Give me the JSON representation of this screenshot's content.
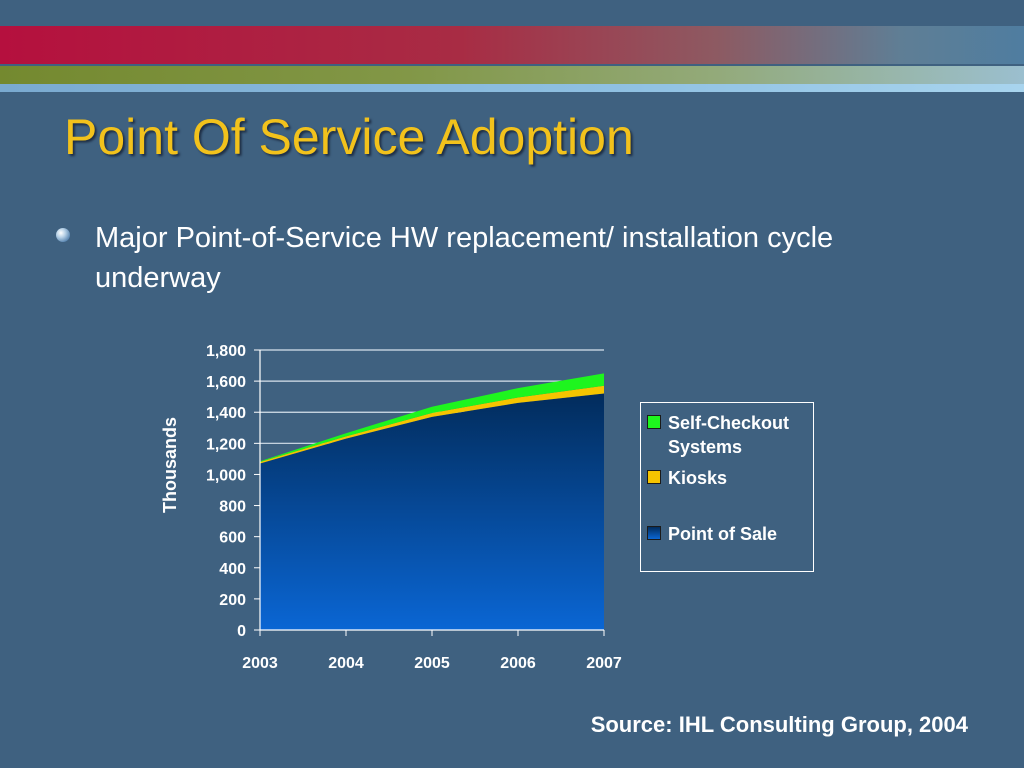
{
  "slide": {
    "title": "Point Of Service Adoption",
    "bullet": "Major Point-of-Service HW replacement/ installation cycle underway",
    "source": "Source:  IHL Consulting Group, 2004"
  },
  "colors": {
    "title": "#f2c21c",
    "background": "#3f6180",
    "self_checkout": "#1ef51e",
    "kiosks": "#f5c400",
    "pos_top": "#022c5c",
    "pos_bottom": "#0a66d4"
  },
  "chart_data": {
    "type": "area",
    "stacked": true,
    "x": [
      "2003",
      "2004",
      "2005",
      "2006",
      "2007"
    ],
    "ylabel": "Thousands",
    "xlabel": "",
    "ylim": [
      0,
      1800
    ],
    "yticks": [
      0,
      200,
      400,
      600,
      800,
      1000,
      1200,
      1400,
      1600,
      1800
    ],
    "ytick_labels": [
      "0",
      "200",
      "400",
      "600",
      "800",
      "1,000",
      "1,200",
      "1,400",
      "1,600",
      "1,800"
    ],
    "grid": true,
    "legend_position": "right",
    "series": [
      {
        "name": "Point of Sale",
        "values": [
          1070,
          1230,
          1370,
          1460,
          1520
        ],
        "color": "#0a66d4"
      },
      {
        "name": "Kiosks",
        "values": [
          10,
          15,
          25,
          35,
          50
        ],
        "color": "#f5c400"
      },
      {
        "name": "Self-Checkout Systems",
        "values": [
          5,
          20,
          40,
          60,
          80
        ],
        "color": "#1ef51e"
      }
    ],
    "legend_order": [
      "Self-Checkout Systems",
      "Kiosks",
      "Point of Sale"
    ]
  }
}
